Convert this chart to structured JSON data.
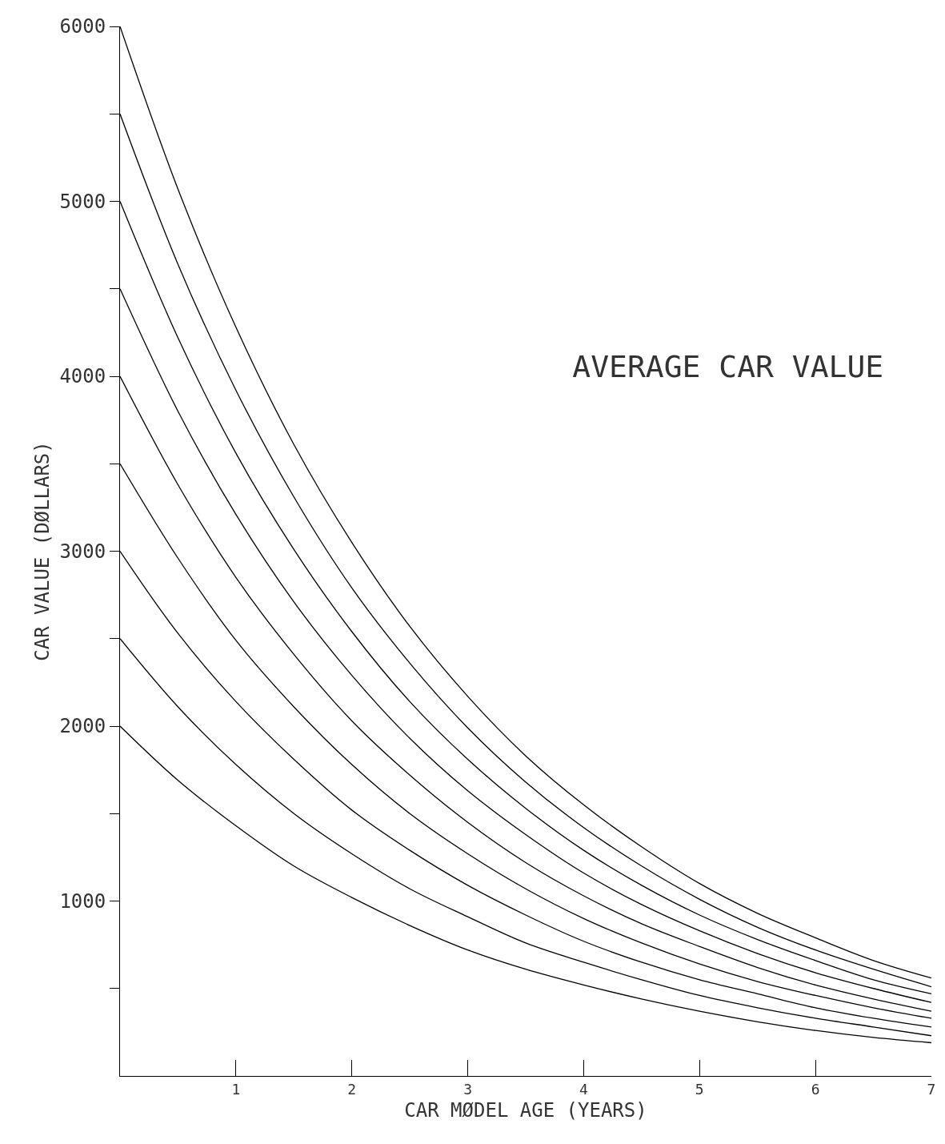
{
  "chart_data": {
    "type": "line",
    "title": "AVERAGE CAR VALUE",
    "xlabel": "CAR MØDEL AGE (YEARS)",
    "ylabel": "CAR VALUE (DØLLARS)",
    "x": [
      0,
      0.5,
      1,
      1.5,
      2,
      2.5,
      3,
      3.5,
      4,
      4.5,
      5,
      5.5,
      6,
      6.5,
      7
    ],
    "series": [
      {
        "color": "#000000",
        "values": [
          2000,
          1690,
          1430,
          1200,
          1020,
          860,
          720,
          610,
          520,
          440,
          370,
          310,
          260,
          220,
          190
        ]
      },
      {
        "color": "#000000",
        "values": [
          2500,
          2110,
          1780,
          1500,
          1270,
          1070,
          910,
          760,
          650,
          550,
          460,
          390,
          330,
          280,
          230
        ]
      },
      {
        "color": "#000000",
        "values": [
          3000,
          2530,
          2140,
          1810,
          1520,
          1290,
          1090,
          920,
          770,
          650,
          550,
          470,
          390,
          330,
          280
        ]
      },
      {
        "color": "#000000",
        "values": [
          3500,
          2960,
          2490,
          2110,
          1780,
          1500,
          1270,
          1070,
          900,
          760,
          640,
          540,
          460,
          390,
          330
        ]
      },
      {
        "color": "#000000",
        "values": [
          4000,
          3380,
          2850,
          2410,
          2030,
          1720,
          1450,
          1220,
          1030,
          870,
          740,
          620,
          520,
          440,
          370
        ]
      },
      {
        "color": "#000000",
        "values": [
          4500,
          3800,
          3210,
          2710,
          2290,
          1930,
          1630,
          1380,
          1160,
          980,
          830,
          700,
          590,
          500,
          420
        ]
      },
      {
        "color": "#000000",
        "values": [
          5000,
          4220,
          3560,
          3010,
          2540,
          2140,
          1810,
          1530,
          1290,
          1090,
          920,
          780,
          660,
          550,
          470
        ]
      },
      {
        "color": "#000000",
        "values": [
          5500,
          4640,
          3920,
          3310,
          2790,
          2360,
          1990,
          1680,
          1420,
          1200,
          1010,
          850,
          720,
          610,
          510
        ]
      },
      {
        "color": "#000000",
        "values": [
          6000,
          5070,
          4280,
          3610,
          3050,
          2570,
          2170,
          1830,
          1550,
          1310,
          1100,
          930,
          790,
          660,
          560
        ]
      }
    ],
    "xlim": [
      0,
      7
    ],
    "xticks": [
      1,
      2,
      3,
      4,
      5,
      6,
      7
    ],
    "ylim": [
      0,
      6000
    ],
    "yticks": [
      {
        "value": 500,
        "label": null
      },
      1000,
      {
        "value": 1500,
        "label": null
      },
      2000,
      {
        "value": 2500,
        "label": null
      },
      3000,
      {
        "value": 3500,
        "label": null
      },
      4000,
      {
        "value": 4500,
        "label": null
      },
      5000,
      {
        "value": 5500,
        "label": null
      },
      6000
    ],
    "marker": "none",
    "line_style": "solid"
  }
}
